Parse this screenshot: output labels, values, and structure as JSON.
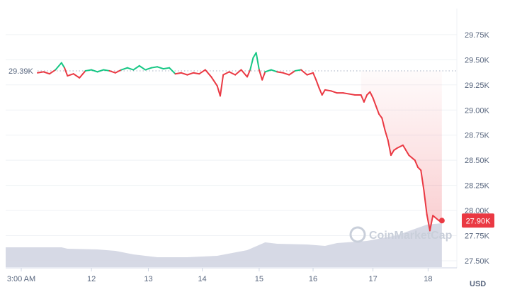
{
  "chart_data": {
    "type": "line",
    "title": "",
    "xlabel": "",
    "ylabel": "",
    "unit": "USD",
    "x_ticks": [
      "3:00 AM",
      "12",
      "13",
      "14",
      "15",
      "16",
      "17",
      "18"
    ],
    "y_ticks": [
      "29.75K",
      "29.50K",
      "29.25K",
      "29.00K",
      "28.75K",
      "28.50K",
      "28.25K",
      "28.00K",
      "27.75K",
      "27.50K"
    ],
    "ylim": [
      27.5,
      29.9
    ],
    "xlim": [
      0,
      7.0
    ],
    "reference": {
      "value": 29.39,
      "label": "29.39K"
    },
    "current": {
      "value": 27.9,
      "label": "27.90K"
    },
    "grid": true,
    "colors": {
      "up": "#16c784",
      "down": "#ea3943",
      "volume": "#d1d5e2",
      "grid": "#eff2f5",
      "badge": "#ea3943"
    },
    "watermark": "CoinMarketCap",
    "series": [
      {
        "values": [
          [
            0.0,
            29.37
          ],
          [
            0.1,
            29.38
          ],
          [
            0.2,
            29.36
          ],
          [
            0.3,
            29.4
          ],
          [
            0.4,
            29.47
          ],
          [
            0.45,
            29.42
          ],
          [
            0.5,
            29.34
          ],
          [
            0.6,
            29.36
          ],
          [
            0.7,
            29.32
          ],
          [
            0.8,
            29.39
          ],
          [
            0.9,
            29.4
          ],
          [
            1.0,
            29.38
          ],
          [
            1.1,
            29.4
          ],
          [
            1.2,
            29.39
          ],
          [
            1.3,
            29.37
          ],
          [
            1.4,
            29.4
          ],
          [
            1.5,
            29.42
          ],
          [
            1.6,
            29.4
          ],
          [
            1.7,
            29.44
          ],
          [
            1.8,
            29.4
          ],
          [
            1.9,
            29.42
          ],
          [
            2.0,
            29.43
          ],
          [
            2.1,
            29.41
          ],
          [
            2.2,
            29.42
          ],
          [
            2.3,
            29.36
          ],
          [
            2.4,
            29.37
          ],
          [
            2.5,
            29.35
          ],
          [
            2.6,
            29.37
          ],
          [
            2.7,
            29.36
          ],
          [
            2.8,
            29.4
          ],
          [
            2.9,
            29.33
          ],
          [
            3.0,
            29.24
          ],
          [
            3.05,
            29.14
          ],
          [
            3.1,
            29.35
          ],
          [
            3.2,
            29.38
          ],
          [
            3.3,
            29.35
          ],
          [
            3.4,
            29.4
          ],
          [
            3.5,
            29.33
          ],
          [
            3.55,
            29.4
          ],
          [
            3.6,
            29.52
          ],
          [
            3.65,
            29.57
          ],
          [
            3.7,
            29.4
          ],
          [
            3.75,
            29.3
          ],
          [
            3.8,
            29.38
          ],
          [
            3.9,
            29.4
          ],
          [
            4.0,
            29.38
          ],
          [
            4.1,
            29.37
          ],
          [
            4.2,
            29.35
          ],
          [
            4.3,
            29.39
          ],
          [
            4.4,
            29.4
          ],
          [
            4.5,
            29.35
          ],
          [
            4.6,
            29.37
          ],
          [
            4.65,
            29.3
          ],
          [
            4.7,
            29.22
          ],
          [
            4.75,
            29.15
          ],
          [
            4.8,
            29.2
          ],
          [
            4.9,
            29.19
          ],
          [
            5.0,
            29.17
          ],
          [
            5.1,
            29.17
          ],
          [
            5.2,
            29.16
          ],
          [
            5.3,
            29.15
          ],
          [
            5.4,
            29.15
          ],
          [
            5.45,
            29.08
          ],
          [
            5.5,
            29.15
          ],
          [
            5.55,
            29.18
          ],
          [
            5.6,
            29.12
          ],
          [
            5.65,
            29.04
          ],
          [
            5.7,
            28.96
          ],
          [
            5.75,
            28.92
          ],
          [
            5.8,
            28.8
          ],
          [
            5.85,
            28.7
          ],
          [
            5.9,
            28.55
          ],
          [
            5.95,
            28.6
          ],
          [
            6.0,
            28.62
          ],
          [
            6.1,
            28.65
          ],
          [
            6.15,
            28.6
          ],
          [
            6.2,
            28.55
          ],
          [
            6.3,
            28.5
          ],
          [
            6.35,
            28.43
          ],
          [
            6.4,
            28.4
          ],
          [
            6.45,
            28.2
          ],
          [
            6.5,
            27.96
          ],
          [
            6.55,
            27.8
          ],
          [
            6.6,
            27.95
          ],
          [
            6.7,
            27.9
          ],
          [
            6.75,
            27.9
          ]
        ]
      }
    ],
    "volume": [
      [
        0.0,
        0.28
      ],
      [
        0.4,
        0.28
      ],
      [
        0.5,
        0.26
      ],
      [
        1.0,
        0.25
      ],
      [
        1.3,
        0.23
      ],
      [
        1.6,
        0.18
      ],
      [
        2.0,
        0.14
      ],
      [
        2.5,
        0.14
      ],
      [
        3.0,
        0.16
      ],
      [
        3.5,
        0.24
      ],
      [
        3.8,
        0.35
      ],
      [
        4.0,
        0.33
      ],
      [
        4.5,
        0.32
      ],
      [
        4.8,
        0.3
      ],
      [
        5.0,
        0.34
      ],
      [
        5.5,
        0.37
      ],
      [
        6.0,
        0.45
      ],
      [
        6.5,
        0.6
      ],
      [
        6.75,
        0.62
      ]
    ]
  }
}
